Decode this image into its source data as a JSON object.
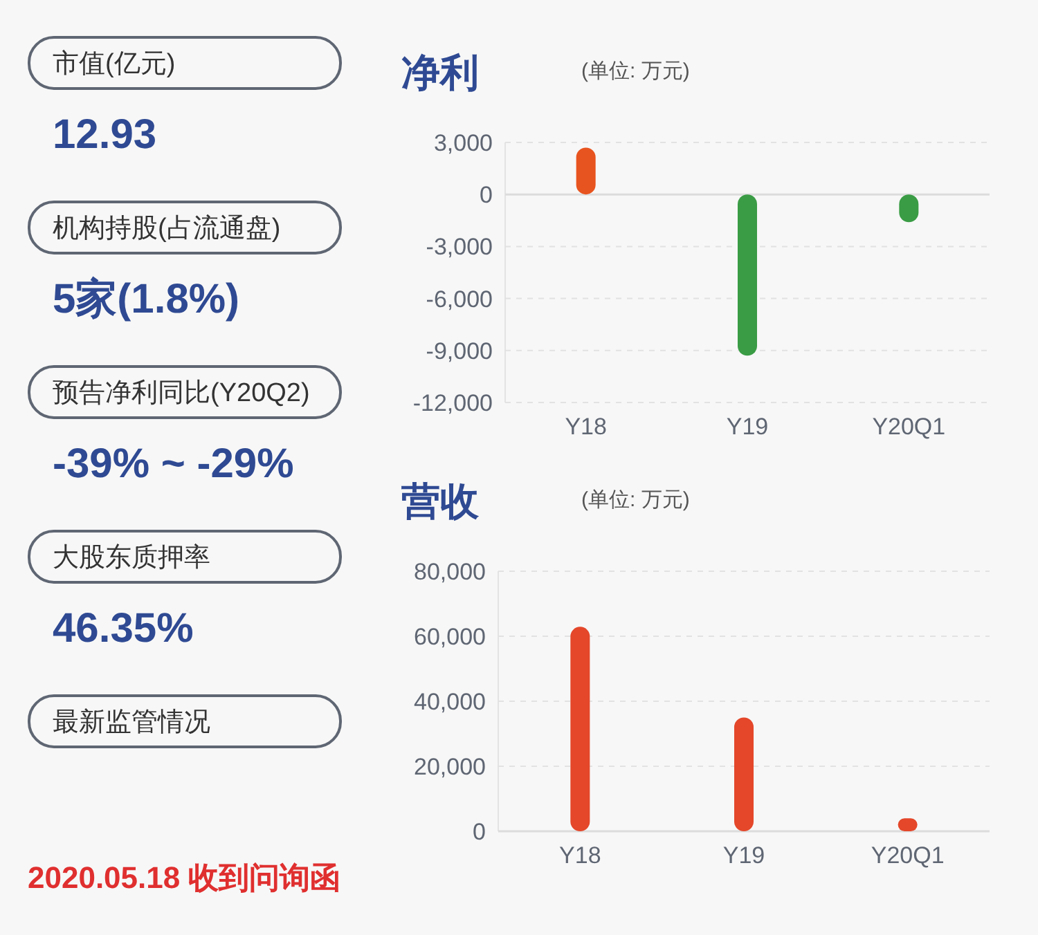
{
  "chart_data": [
    {
      "type": "other",
      "annotations": [
        "市值(亿元)",
        "12.93",
        "机构持股(占流通盘)",
        "5家(1.8%)",
        "预告净利同比(Y20Q2)",
        "-39% ~ -29%",
        "大股东质押率",
        "46.35%",
        "最新监管情况",
        "2020.05.18 收到问询函"
      ]
    },
    {
      "type": "bar",
      "title": "净利",
      "subtitle": "(单位: 万元)",
      "categories": [
        "Y18",
        "Y19",
        "Y20Q1"
      ],
      "values": [
        2700,
        -9300,
        -1600
      ],
      "colors": [
        "#e8541f",
        "#3a9c45",
        "#3a9c45"
      ],
      "ylim": [
        -12000,
        3000
      ],
      "yticks": [
        {
          "value": 3000,
          "label": "3,000"
        },
        0,
        {
          "value": -3000,
          "label": "-3,000"
        },
        {
          "value": -6000,
          "label": "-6,000"
        },
        {
          "value": -9000,
          "label": "-9,000"
        },
        {
          "value": -12000,
          "label": "-12,000"
        }
      ],
      "grid": "y"
    },
    {
      "type": "bar",
      "title": "营收",
      "subtitle": "(单位: 万元)",
      "categories": [
        "Y18",
        "Y19",
        "Y20Q1"
      ],
      "values": [
        62900,
        35000,
        4000
      ],
      "color": "#e4472a",
      "ylim": [
        0,
        80000
      ],
      "yticks": [
        0,
        {
          "value": 20000,
          "label": "20,000"
        },
        {
          "value": 40000,
          "label": "40,000"
        },
        {
          "value": 60000,
          "label": "60,000"
        },
        {
          "value": 80000,
          "label": "80,000"
        }
      ],
      "grid": "y"
    }
  ]
}
